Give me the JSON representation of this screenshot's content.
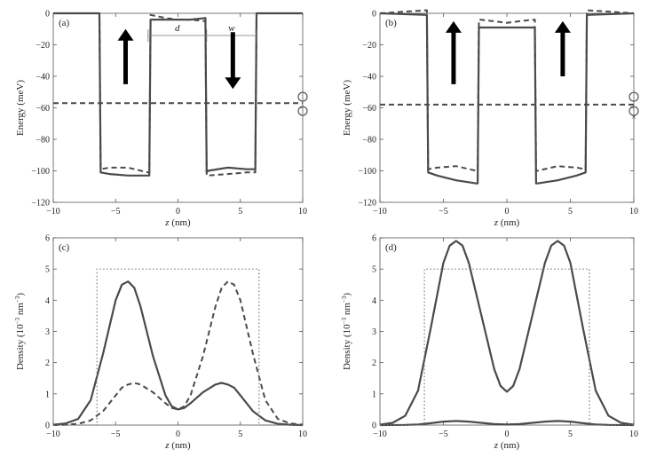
{
  "chart_data": [
    {
      "panel": "(a)",
      "type": "line",
      "xlabel_italic": "z",
      "xlabel_unit": " (nm)",
      "ylabel": "Energy (meV)",
      "xlim": [
        -10,
        10
      ],
      "ylim": [
        -120,
        0
      ],
      "xticks": [
        "−10",
        "−5",
        "0",
        "5",
        "10"
      ],
      "yticks": [
        "0",
        "−20",
        "−40",
        "−60",
        "−80",
        "−100",
        "−120"
      ],
      "annotations": {
        "d": "d",
        "w": "w"
      },
      "series": [
        {
          "style": "solid",
          "x": [
            -10,
            -6.3,
            -6.2,
            -5.5,
            -4,
            -2.4,
            -2.3,
            -2.2,
            -1,
            0,
            1,
            2.2,
            2.3,
            2.4,
            4,
            5.5,
            6.2,
            6.3,
            10
          ],
          "y": [
            0,
            0,
            -101,
            -102,
            -103,
            -103,
            -103,
            -4,
            -4,
            -4,
            -4,
            -3,
            -101,
            -100,
            -98,
            -99,
            -99,
            0,
            0
          ]
        },
        {
          "style": "dashed",
          "x": [
            -10,
            -6.3,
            -6.2,
            -5.5,
            -4,
            -2.4,
            -2.3,
            -2.2,
            -1,
            0,
            1,
            2.2,
            2.3,
            2.4,
            4,
            5.5,
            6.2,
            6.3,
            10
          ],
          "y": [
            0,
            0,
            -99,
            -98,
            -98,
            -101,
            -101,
            -1,
            -3,
            -4,
            -4,
            -5,
            -103,
            -103,
            -102,
            -101,
            -101,
            0,
            0
          ]
        },
        {
          "style": "dashed",
          "x": [
            -10,
            10
          ],
          "y": [
            -57,
            -57
          ]
        }
      ]
    },
    {
      "panel": "(b)",
      "type": "line",
      "xlabel_italic": "z",
      "xlabel_unit": " (nm)",
      "ylabel": "Energy (meV)",
      "xlim": [
        -10,
        10
      ],
      "ylim": [
        -120,
        0
      ],
      "xticks": [
        "−10",
        "−5",
        "0",
        "5",
        "10"
      ],
      "yticks": [
        "0",
        "−20",
        "−40",
        "−60",
        "−80",
        "−100",
        "−120"
      ],
      "series": [
        {
          "style": "solid",
          "x": [
            -10,
            -6.3,
            -6.2,
            -5.5,
            -4,
            -2.4,
            -2.3,
            -2.2,
            -1,
            0,
            1,
            2.2,
            2.3,
            2.4,
            4,
            5.5,
            6.2,
            6.3,
            10
          ],
          "y": [
            0,
            -1,
            -101,
            -103,
            -106,
            -108,
            -108,
            -9,
            -9,
            -9,
            -9,
            -9,
            -108,
            -108,
            -106,
            -103,
            -101,
            -1,
            0
          ]
        },
        {
          "style": "dashed",
          "x": [
            -10,
            -6.3,
            -6.2,
            -5.5,
            -4,
            -2.4,
            -2.3,
            -2.2,
            -1,
            0,
            1,
            2.2,
            2.3,
            2.4,
            4,
            5.5,
            6.2,
            6.3,
            10
          ],
          "y": [
            0,
            2,
            -99,
            -98,
            -97,
            -100,
            -100,
            -4,
            -5,
            -6,
            -5,
            -4,
            -100,
            -100,
            -97,
            -98,
            -99,
            2,
            0
          ]
        },
        {
          "style": "dashed",
          "x": [
            -10,
            10
          ],
          "y": [
            -58,
            -58
          ]
        }
      ]
    },
    {
      "panel": "(c)",
      "type": "line",
      "xlabel_italic": "z",
      "xlabel_unit": " (nm)",
      "ylabel": "Density (10",
      "ylabel_sup": "−3",
      "ylabel_tail": " nm",
      "ylabel_sup2": "−3",
      "ylabel_close": ")",
      "xlim": [
        -10,
        10
      ],
      "ylim": [
        0,
        6
      ],
      "xticks": [
        "−10",
        "−5",
        "0",
        "5",
        "10"
      ],
      "yticks": [
        "0",
        "1",
        "2",
        "3",
        "4",
        "5",
        "6"
      ],
      "series": [
        {
          "style": "solid",
          "x": [
            -10,
            -9,
            -8,
            -7,
            -6,
            -5,
            -4.5,
            -4,
            -3.5,
            -3,
            -2,
            -1,
            -0.5,
            0,
            0.5,
            1,
            2,
            3,
            3.5,
            4,
            4.5,
            5,
            6,
            7,
            8,
            9,
            10
          ],
          "y": [
            0.01,
            0.05,
            0.2,
            0.8,
            2.3,
            4.0,
            4.5,
            4.6,
            4.4,
            3.8,
            2.2,
            0.95,
            0.6,
            0.5,
            0.55,
            0.7,
            1.05,
            1.3,
            1.35,
            1.3,
            1.2,
            0.95,
            0.45,
            0.15,
            0.04,
            0.01,
            0
          ]
        },
        {
          "style": "dashed",
          "x": [
            -10,
            -9,
            -8,
            -7,
            -6,
            -5,
            -4.5,
            -4,
            -3.5,
            -3,
            -2,
            -1,
            -0.5,
            0,
            0.5,
            1,
            2,
            3,
            3.5,
            4,
            4.5,
            5,
            6,
            7,
            8,
            9,
            10
          ],
          "y": [
            0,
            0.01,
            0.04,
            0.15,
            0.45,
            0.95,
            1.2,
            1.3,
            1.35,
            1.3,
            1.05,
            0.7,
            0.55,
            0.5,
            0.6,
            0.95,
            2.2,
            3.8,
            4.4,
            4.6,
            4.5,
            4.0,
            2.3,
            0.8,
            0.2,
            0.05,
            0.01
          ]
        },
        {
          "style": "dotted",
          "x": [
            -10,
            -6.5,
            -6.5,
            6.5,
            6.5,
            10
          ],
          "y": [
            0,
            0,
            5,
            5,
            0,
            0
          ]
        }
      ]
    },
    {
      "panel": "(d)",
      "type": "line",
      "xlabel_italic": "z",
      "xlabel_unit": " (nm)",
      "ylabel": "Density (10",
      "ylabel_sup": "−3",
      "ylabel_tail": " nm",
      "ylabel_sup2": "−3",
      "ylabel_close": ")",
      "xlim": [
        -10,
        10
      ],
      "ylim": [
        0,
        6
      ],
      "xticks": [
        "−10",
        "−5",
        "0",
        "5",
        "10"
      ],
      "yticks": [
        "0",
        "1",
        "2",
        "3",
        "4",
        "5",
        "6"
      ],
      "series": [
        {
          "style": "solid",
          "x": [
            -10,
            -9,
            -8,
            -7,
            -6,
            -5,
            -4.5,
            -4,
            -3.5,
            -3,
            -2,
            -1,
            -0.5,
            0,
            0.5,
            1,
            2,
            3,
            3.5,
            4,
            4.5,
            5,
            6,
            7,
            8,
            9,
            10
          ],
          "y": [
            0.01,
            0.07,
            0.3,
            1.1,
            3.1,
            5.2,
            5.75,
            5.9,
            5.75,
            5.2,
            3.5,
            1.8,
            1.25,
            1.07,
            1.25,
            1.8,
            3.5,
            5.2,
            5.75,
            5.9,
            5.75,
            5.2,
            3.1,
            1.1,
            0.3,
            0.07,
            0.01
          ]
        },
        {
          "style": "solid",
          "x": [
            -10,
            -8,
            -7,
            -6,
            -5,
            -4,
            -3,
            -2,
            -1,
            0,
            1,
            2,
            3,
            4,
            5,
            6,
            7,
            8,
            10
          ],
          "y": [
            0,
            0.005,
            0.02,
            0.06,
            0.11,
            0.13,
            0.11,
            0.07,
            0.03,
            0.02,
            0.03,
            0.07,
            0.11,
            0.13,
            0.11,
            0.06,
            0.02,
            0.005,
            0
          ]
        },
        {
          "style": "dotted",
          "x": [
            -10,
            -6.5,
            -6.5,
            6.5,
            6.5,
            10
          ],
          "y": [
            0,
            0,
            5,
            5,
            0,
            0
          ]
        }
      ]
    }
  ]
}
